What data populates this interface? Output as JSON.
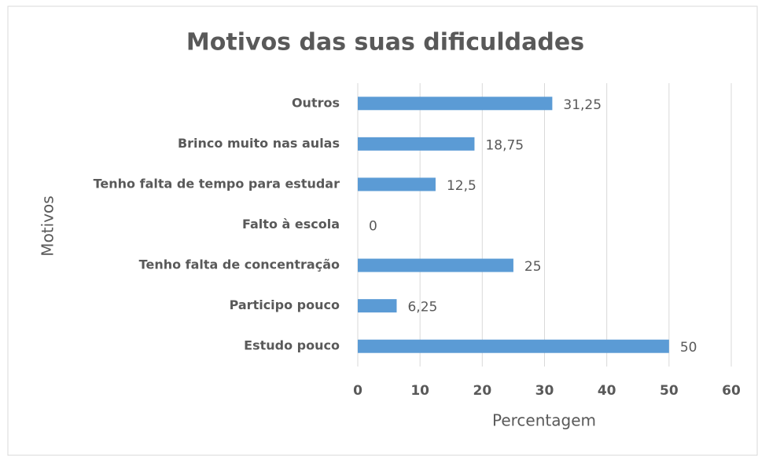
{
  "chart_data": {
    "type": "hbar",
    "title": "Motivos das suas dificuldades",
    "x_label": "Percentagem",
    "y_label": "Motivos",
    "categories": [
      "Estudo pouco",
      "Participo pouco",
      "Tenho falta de concentração",
      "Falto à escola",
      "Tenho falta de tempo para estudar",
      "Brinco muito nas aulas",
      "Outros"
    ],
    "values": [
      50,
      6.25,
      25,
      0,
      12.5,
      18.75,
      31.25
    ],
    "value_labels": [
      "50",
      "6,25",
      "25",
      "0",
      "12,5",
      "18,75",
      "31,25"
    ],
    "color": "#5b9bd5",
    "xlim": [
      0,
      60
    ],
    "xticks": [
      0,
      10,
      20,
      30,
      40,
      50,
      60
    ],
    "grid": true
  }
}
